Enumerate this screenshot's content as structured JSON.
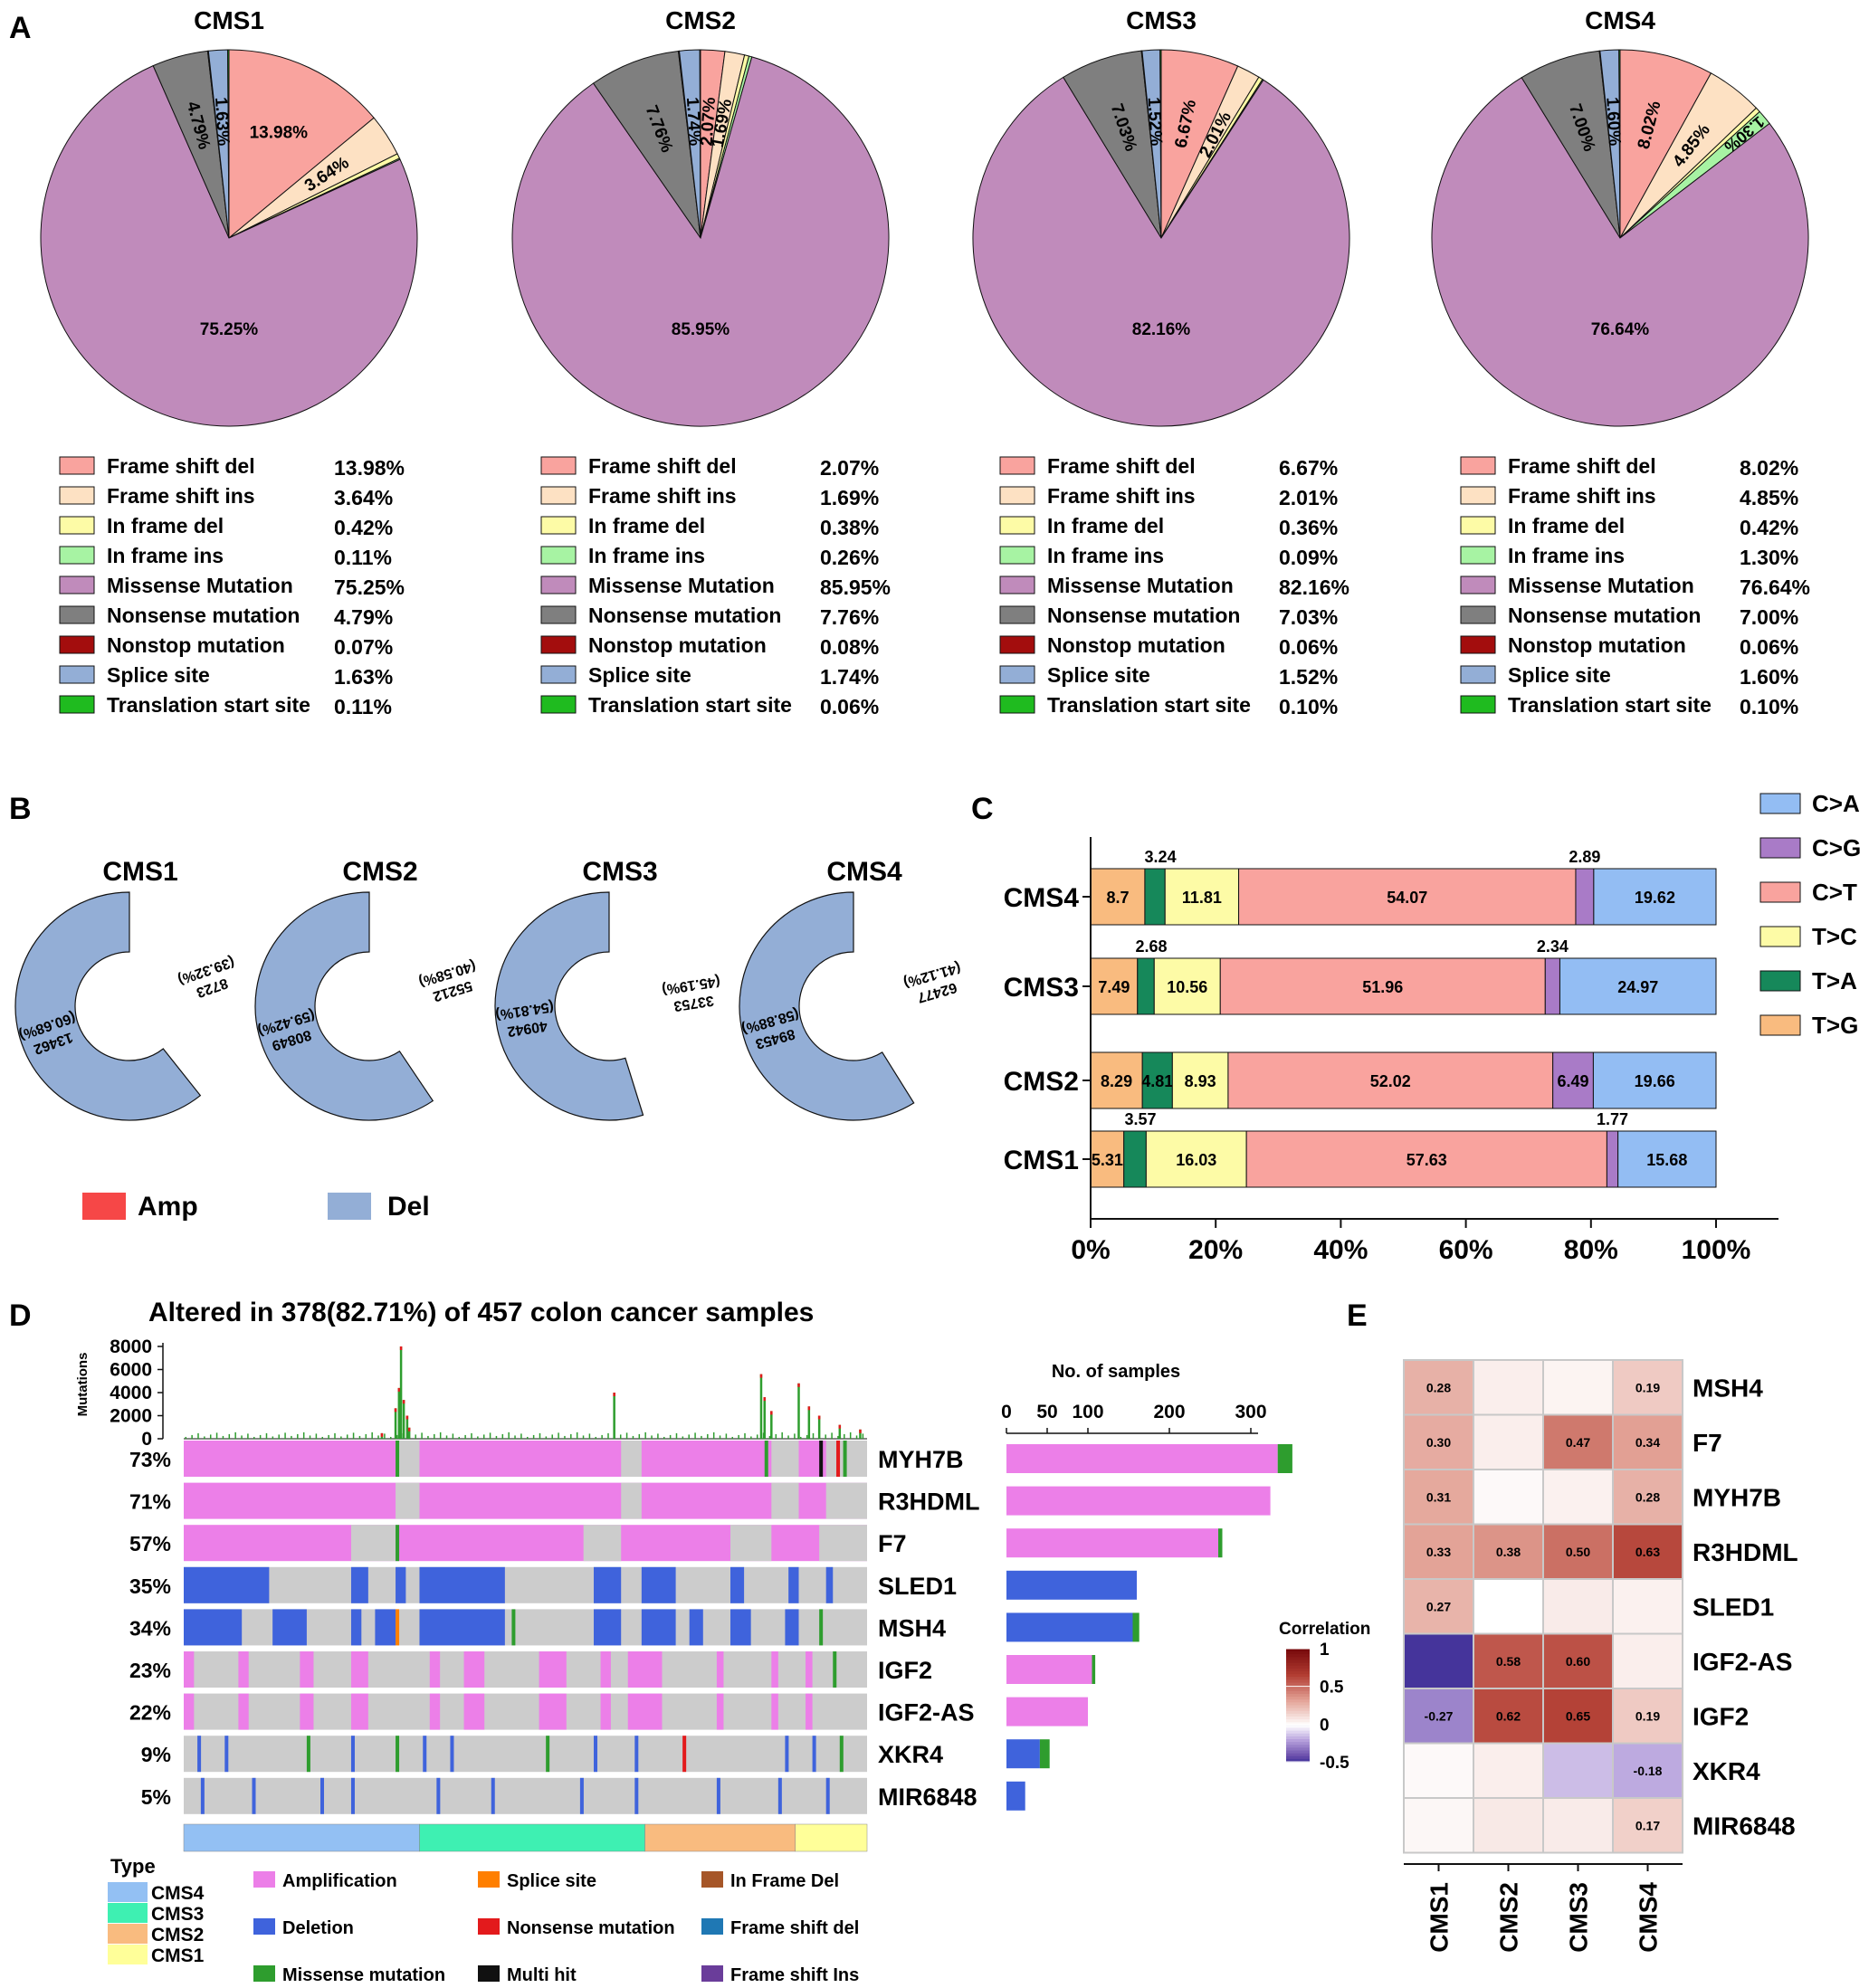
{
  "panel_letters": [
    "A",
    "B",
    "C",
    "D",
    "E"
  ],
  "colors": {
    "frameshift_del": "#f9a39e",
    "frameshift_ins": "#fde1c3",
    "inframe_del": "#fdfba6",
    "inframe_ins": "#a7f3a3",
    "missense": "#c08bbb",
    "nonsense": "#7f7f7f",
    "nonstop": "#a30d0d",
    "splice": "#93aed6",
    "tss": "#1fbb1f",
    "amp": "#f64747",
    "del": "#93aed6",
    "ca": "#93bdf3",
    "cg": "#a97bc7",
    "ct": "#f9a39e",
    "tc": "#fdfba6",
    "ta": "#16885a",
    "tg": "#f9bb7f",
    "onco_amp": "#ec7fe8",
    "onco_del": "#3f63dc",
    "onco_miss": "#2e9d2e",
    "onco_splice": "#ff7f00",
    "onco_nonsense": "#e31a1c",
    "onco_multi": "#111111",
    "onco_ifdel": "#a65628",
    "onco_fsdel": "#1f78b4",
    "onco_fsins": "#6a3d9a",
    "onco_bg": "#cccccc",
    "cms1": "#ffff99",
    "cms2": "#3ef0b2",
    "cms3": "#f9bb7f",
    "cms4": "#93c0f3"
  },
  "chart_data": [
    {
      "id": "A",
      "type": "pie",
      "categories": [
        "Frame shift del",
        "Frame shift ins",
        "In frame del",
        "In frame ins",
        "Missense Mutation",
        "Nonsense mutation",
        "Nonstop mutation",
        "Splice site",
        "Translation start site"
      ],
      "charts": [
        {
          "title": "CMS1",
          "values": [
            13.98,
            3.64,
            0.42,
            0.11,
            75.25,
            4.79,
            0.07,
            1.63,
            0.11
          ],
          "labels": [
            "13.98%",
            "3.64%",
            "0.42%",
            "0.11%",
            "75.25%",
            "4.79%",
            "0.07%",
            "1.63%",
            "0.11%"
          ]
        },
        {
          "title": "CMS2",
          "values": [
            2.07,
            1.69,
            0.38,
            0.26,
            85.95,
            7.76,
            0.08,
            1.74,
            0.06
          ],
          "labels": [
            "2.07%",
            "1.69%",
            "0.38%",
            "0.26%",
            "85.95%",
            "7.76%",
            "0.08%",
            "1.74%",
            "0.06%"
          ]
        },
        {
          "title": "CMS3",
          "values": [
            6.67,
            2.01,
            0.36,
            0.09,
            82.16,
            7.03,
            0.06,
            1.52,
            0.1
          ],
          "labels": [
            "6.67%",
            "2.01%",
            "0.36%",
            "0.09%",
            "82.16%",
            "7.03%",
            "0.06%",
            "1.52%",
            "0.10%"
          ]
        },
        {
          "title": "CMS4",
          "values": [
            8.02,
            4.85,
            0.42,
            1.3,
            76.64,
            7.0,
            0.06,
            1.6,
            0.1
          ],
          "labels": [
            "8.02%",
            "4.85%",
            "0.42%",
            "1.30%",
            "76.64%",
            "7.00%",
            "0.06%",
            "1.60%",
            "0.10%"
          ]
        }
      ]
    },
    {
      "id": "B",
      "type": "pie",
      "subtype": "donut",
      "categories": [
        "Amp",
        "Del"
      ],
      "charts": [
        {
          "title": "CMS1",
          "values": [
            8723,
            13462
          ],
          "percent_labels": [
            "(39.32%)",
            "(60.68%)"
          ],
          "count_labels": [
            "8723",
            "13462"
          ]
        },
        {
          "title": "CMS2",
          "values": [
            55212,
            80849
          ],
          "percent_labels": [
            "(40.58%)",
            "(59.42%)"
          ],
          "count_labels": [
            "55212",
            "80849"
          ]
        },
        {
          "title": "CMS3",
          "values": [
            33753,
            40942
          ],
          "percent_labels": [
            "(45.19%)",
            "(54.81%)"
          ],
          "count_labels": [
            "33753",
            "40942"
          ]
        },
        {
          "title": "CMS4",
          "values": [
            62477,
            89453
          ],
          "percent_labels": [
            "(41.12%)",
            "(58.88%)"
          ],
          "count_labels": [
            "62477",
            "89453"
          ]
        }
      ]
    },
    {
      "id": "C",
      "type": "bar",
      "orientation": "horizontal",
      "stacked": "percent",
      "categories": [
        "CMS4",
        "CMS3",
        "CMS2",
        "CMS1"
      ],
      "series": [
        {
          "name": "T>G",
          "values": [
            8.7,
            7.49,
            8.29,
            5.31
          ],
          "labels": [
            "8.7",
            "7.49",
            "8.29",
            "5.31"
          ]
        },
        {
          "name": "T>A",
          "values": [
            3.24,
            2.68,
            4.81,
            3.57
          ],
          "labels": [
            "3.24",
            "2.68",
            "4.81",
            "3.57"
          ]
        },
        {
          "name": "T>C",
          "values": [
            11.81,
            10.56,
            8.93,
            16.03
          ],
          "labels": [
            "11.81",
            "10.56",
            "8.93",
            "16.03"
          ]
        },
        {
          "name": "C>T",
          "values": [
            54.07,
            51.96,
            52.02,
            57.63
          ],
          "labels": [
            "54.07",
            "51.96",
            "52.02",
            "57.63"
          ]
        },
        {
          "name": "C>G",
          "values": [
            2.89,
            2.34,
            6.49,
            1.77
          ],
          "labels": [
            "2.89",
            "2.34",
            "6.49",
            "1.77"
          ]
        },
        {
          "name": "C>A",
          "values": [
            19.62,
            24.97,
            19.66,
            15.68
          ],
          "labels": [
            "19.62",
            "24.97",
            "19.66",
            "15.68"
          ]
        }
      ],
      "legend": [
        "C>A",
        "C>G",
        "C>T",
        "T>C",
        "T>A",
        "T>G"
      ],
      "xticks": [
        "0%",
        "20%",
        "40%",
        "60%",
        "80%",
        "100%"
      ],
      "xlim": [
        0,
        100
      ]
    },
    {
      "id": "D",
      "type": "heatmap",
      "subtype": "oncoplot",
      "title": "Altered in 378(82.71%) of 457 colon cancer samples",
      "tmb_axis_label": "Mutations",
      "tmb_ticks": [
        "8000",
        "6000",
        "4000",
        "2000",
        "0"
      ],
      "tmb_tick_values": [
        8000,
        6000,
        4000,
        2000,
        0
      ],
      "genes": [
        "MYH7B",
        "R3HDML",
        "F7",
        "SLED1",
        "MSH4",
        "IGF2",
        "IGF2-AS",
        "XKR4",
        "MIR6848"
      ],
      "percents": [
        "73%",
        "71%",
        "57%",
        "35%",
        "34%",
        "23%",
        "22%",
        "9%",
        "5%"
      ],
      "samples_axis_title": "No. of samples",
      "samples_ticks": [
        "0",
        "50",
        "100",
        "200",
        "300"
      ],
      "samples_tick_values": [
        0,
        50,
        100,
        200,
        300
      ],
      "sample_counts": [
        333,
        324,
        260,
        160,
        155,
        105,
        100,
        41,
        23
      ],
      "sample_mut_counts": [
        18,
        0,
        5,
        0,
        8,
        4,
        0,
        12,
        0
      ],
      "type_legend_title": "Type",
      "type_legend": [
        "CMS4",
        "CMS3",
        "CMS2",
        "CMS1"
      ],
      "type_fractions": [
        0.345,
        0.33,
        0.22,
        0.105
      ],
      "alteration_legend": [
        "Amplification",
        "Splice site",
        "In Frame Del",
        "Deletion",
        "Nonsense mutation",
        "Frame shift del",
        "Missense mutation",
        "Multi hit",
        "Frame shift Ins"
      ]
    },
    {
      "id": "E",
      "type": "heatmap",
      "rows": [
        "MSH4",
        "F7",
        "MYH7B",
        "R3HDML",
        "SLED1",
        "IGF2-AS",
        "IGF2",
        "XKR4",
        "MIR6848"
      ],
      "cols": [
        "CMS1",
        "CMS2",
        "CMS3",
        "CMS4"
      ],
      "values": [
        [
          0.28,
          0.06,
          0.04,
          0.19
        ],
        [
          0.3,
          0.06,
          0.47,
          0.34
        ],
        [
          0.31,
          0.02,
          0.05,
          0.28
        ],
        [
          0.33,
          0.38,
          0.5,
          0.63
        ],
        [
          0.27,
          0.0,
          0.07,
          0.05
        ],
        [
          -0.48,
          0.58,
          0.6,
          0.06
        ],
        [
          -0.27,
          0.62,
          0.65,
          0.19
        ],
        [
          0.02,
          0.06,
          -0.14,
          -0.18
        ],
        [
          0.03,
          0.08,
          0.07,
          0.17
        ]
      ],
      "labels": [
        [
          "0.28",
          "",
          "",
          "0.19"
        ],
        [
          "0.30",
          "",
          "0.47",
          "0.34"
        ],
        [
          "0.31",
          "",
          "",
          "0.28"
        ],
        [
          "0.33",
          "0.38",
          "0.50",
          "0.63"
        ],
        [
          "0.27",
          "",
          "",
          ""
        ],
        [
          "",
          "0.58",
          "0.60",
          ""
        ],
        [
          "-0.27",
          "0.62",
          "0.65",
          "0.19"
        ],
        [
          "",
          "",
          "",
          "-0.18"
        ],
        [
          "",
          "",
          "",
          "0.17"
        ]
      ],
      "colorbar_title": "Correlation",
      "colorbar_ticks": [
        "1",
        "0.5",
        "0",
        "-0.5"
      ],
      "colorbar_tick_values": [
        1,
        0.5,
        0,
        -0.5
      ]
    }
  ]
}
